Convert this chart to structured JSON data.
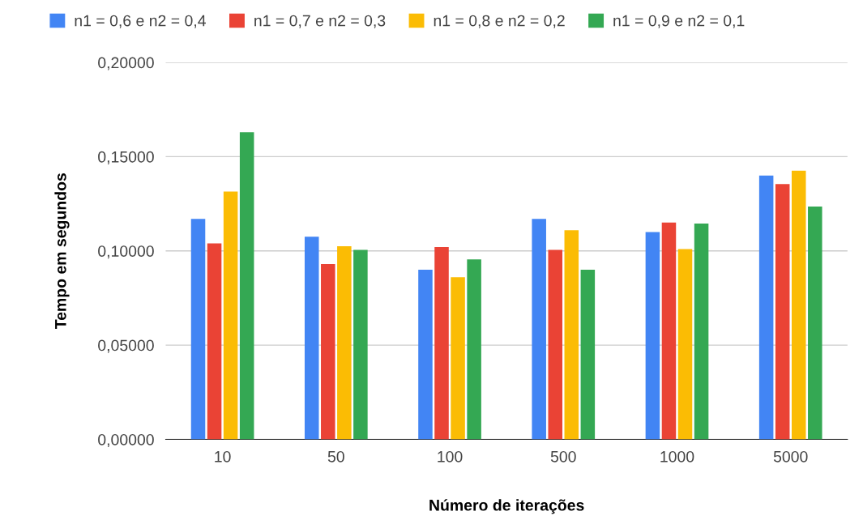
{
  "chart_data": {
    "type": "bar",
    "xlabel": "Número de iterações",
    "ylabel": "Tempo em segundos",
    "categories": [
      "10",
      "50",
      "100",
      "500",
      "1000",
      "5000"
    ],
    "series": [
      {
        "name": "n1 = 0,6 e n2 = 0,4",
        "color": "#4285f4",
        "values": [
          0.117,
          0.1075,
          0.09,
          0.117,
          0.11,
          0.14
        ]
      },
      {
        "name": "n1 = 0,7 e n2 = 0,3",
        "color": "#ea4335",
        "values": [
          0.104,
          0.093,
          0.102,
          0.1005,
          0.115,
          0.1355
        ]
      },
      {
        "name": "n1 = 0,8 e n2 = 0,2",
        "color": "#fbbc04",
        "values": [
          0.1315,
          0.1025,
          0.086,
          0.111,
          0.101,
          0.1425
        ]
      },
      {
        "name": "n1 = 0,9 e n2 = 0,1",
        "color": "#34a853",
        "values": [
          0.163,
          0.1005,
          0.0955,
          0.09,
          0.1145,
          0.1235
        ]
      }
    ],
    "ylim": [
      0,
      0.2
    ],
    "yticks": [
      {
        "value": 0,
        "label": "0,00000"
      },
      {
        "value": 0.05,
        "label": "0,05000"
      },
      {
        "value": 0.1,
        "label": "0,10000"
      },
      {
        "value": 0.15,
        "label": "0,15000"
      },
      {
        "value": 0.2,
        "label": "0,20000"
      }
    ],
    "grid": "y",
    "legend": "top"
  }
}
